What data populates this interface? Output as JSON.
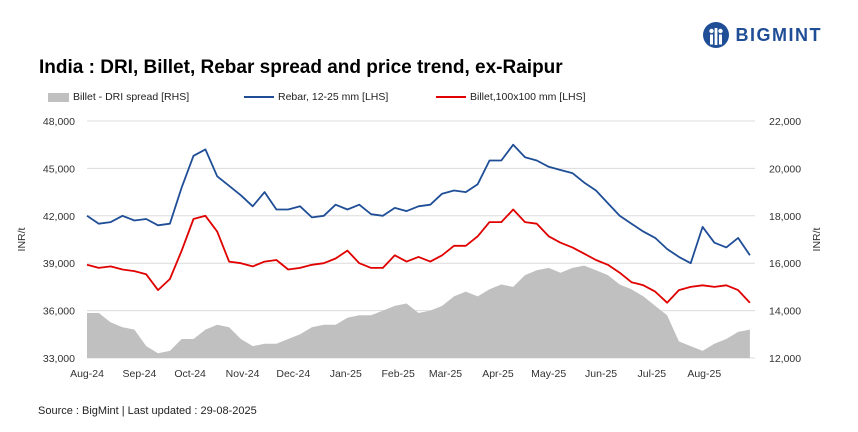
{
  "header": {
    "title": "India : DRI, Billet, Rebar spread and price trend, ex-Raipur",
    "brand": "BIGMINT"
  },
  "source": "Source : BigMint | Last updated : 29-08-2025",
  "chart_data": {
    "type": "line",
    "title": "India : DRI, Billet, Rebar spread and price trend, ex-Raipur",
    "ylabel": "INR/t",
    "y2label": "INR/t",
    "ylim": [
      33000,
      48000
    ],
    "y2lim": [
      12000,
      22000
    ],
    "yticks": [
      "33,000",
      "36,000",
      "39,000",
      "42,000",
      "45,000",
      "48,000"
    ],
    "y2ticks": [
      "12,000",
      "14,000",
      "16,000",
      "18,000",
      "20,000",
      "22,000"
    ],
    "xticks": [
      "Aug-24",
      "Sep-24",
      "Oct-24",
      "Nov-24",
      "Dec-24",
      "Jan-25",
      "Feb-25",
      "Mar-25",
      "Apr-25",
      "May-25",
      "Jun-25",
      "Jul-25",
      "Aug-25"
    ],
    "x": [
      "2024-08-01",
      "2024-08-08",
      "2024-08-15",
      "2024-08-22",
      "2024-08-29",
      "2024-09-05",
      "2024-09-12",
      "2024-09-19",
      "2024-09-26",
      "2024-10-03",
      "2024-10-10",
      "2024-10-17",
      "2024-10-24",
      "2024-10-31",
      "2024-11-07",
      "2024-11-14",
      "2024-11-21",
      "2024-11-28",
      "2024-12-05",
      "2024-12-12",
      "2024-12-19",
      "2024-12-26",
      "2025-01-02",
      "2025-01-09",
      "2025-01-16",
      "2025-01-23",
      "2025-01-30",
      "2025-02-06",
      "2025-02-13",
      "2025-02-20",
      "2025-02-27",
      "2025-03-06",
      "2025-03-13",
      "2025-03-20",
      "2025-03-27",
      "2025-04-03",
      "2025-04-10",
      "2025-04-17",
      "2025-04-24",
      "2025-05-01",
      "2025-05-08",
      "2025-05-15",
      "2025-05-22",
      "2025-05-29",
      "2025-06-05",
      "2025-06-12",
      "2025-06-19",
      "2025-06-26",
      "2025-07-03",
      "2025-07-10",
      "2025-07-17",
      "2025-07-24",
      "2025-07-31",
      "2025-08-07",
      "2025-08-14",
      "2025-08-21",
      "2025-08-28"
    ],
    "legend_position": "top",
    "grid": true,
    "series": [
      {
        "name": "Billet - DRI spread  [RHS]",
        "type": "area",
        "axis": "right",
        "color": "#c0c0c0",
        "values": [
          13900,
          13900,
          13500,
          13300,
          13200,
          12500,
          12200,
          12300,
          12800,
          12800,
          13200,
          13400,
          13300,
          12800,
          12500,
          12600,
          12600,
          12800,
          13000,
          13300,
          13400,
          13400,
          13700,
          13800,
          13800,
          14000,
          14200,
          14300,
          13900,
          14000,
          14200,
          14600,
          14800,
          14600,
          14900,
          15100,
          15000,
          15500,
          15700,
          15800,
          15600,
          15800,
          15900,
          15700,
          15500,
          15100,
          14900,
          14600,
          14200,
          13800,
          12700,
          12500,
          12300,
          12600,
          12800,
          13100,
          13200
        ]
      },
      {
        "name": "Rebar, 12-25 mm [LHS]",
        "type": "line",
        "axis": "left",
        "color": "#1f4e97",
        "values": [
          42000,
          41500,
          41600,
          42000,
          41700,
          41800,
          41400,
          41500,
          43800,
          45800,
          46200,
          44500,
          43900,
          43300,
          42600,
          43500,
          42400,
          42400,
          42600,
          41900,
          42000,
          42700,
          42400,
          42700,
          42100,
          42000,
          42500,
          42300,
          42600,
          42700,
          43400,
          43600,
          43500,
          44000,
          45500,
          45500,
          46500,
          45700,
          45500,
          45100,
          44900,
          44700,
          44100,
          43600,
          42800,
          42000,
          41500,
          41000,
          40600,
          39900,
          39400,
          39000,
          41300,
          40300,
          40000,
          40600,
          39500
        ]
      },
      {
        "name": "Billet,100x100 mm [LHS]",
        "type": "line",
        "axis": "left",
        "color": "#e00000",
        "values": [
          38900,
          38700,
          38800,
          38600,
          38500,
          38300,
          37300,
          38000,
          39800,
          41800,
          42000,
          41000,
          39100,
          39000,
          38800,
          39100,
          39200,
          38600,
          38700,
          38900,
          39000,
          39300,
          39800,
          39000,
          38700,
          38700,
          39500,
          39100,
          39400,
          39100,
          39500,
          40100,
          40100,
          40700,
          41600,
          41600,
          42400,
          41600,
          41500,
          40700,
          40300,
          40000,
          39600,
          39200,
          38900,
          38400,
          37800,
          37600,
          37200,
          36500,
          37300,
          37500,
          37600,
          37500,
          37600,
          37300,
          36500
        ]
      }
    ]
  }
}
